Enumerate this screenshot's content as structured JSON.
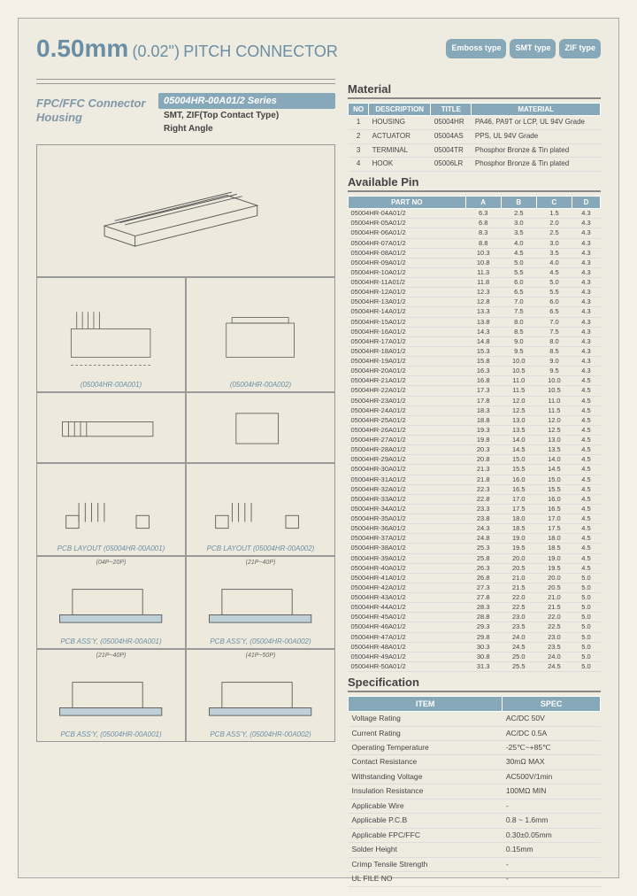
{
  "header": {
    "size": "0.50mm",
    "size_inch": "(0.02\")",
    "title_rest": "PITCH CONNECTOR",
    "badges": [
      "Emboss type",
      "SMT type",
      "ZIF type"
    ]
  },
  "series": {
    "left_title": "FPC/FFC Connector Housing",
    "box": "05004HR-00A01/2  Series",
    "line1": "SMT, ZIF(Top Contact Type)",
    "line2": "Right Angle"
  },
  "diagrams": {
    "main": "(05004HR-00A001)",
    "d2a": "(05004HR-00A001)",
    "d2b": "(05004HR-00A002)",
    "pcb1": "PCB LAYOUT (05004HR-00A001)",
    "pcb2": "PCB LAYOUT (05004HR-00A002)",
    "assy1": "PCB ASS'Y, (05004HR-00A001)",
    "assy2": "PCB ASS'Y, (05004HR-00A002)",
    "assy3": "PCB ASS'Y, (05004HR-00A001)",
    "assy4": "PCB ASS'Y, (05004HR-00A002)",
    "assy1_note": "(04P~20P)",
    "assy2_note": "(21P~40P)",
    "assy3_note": "(21P~40P)",
    "assy4_note": "(41P~50P)"
  },
  "material": {
    "heading": "Material",
    "cols": [
      "NO",
      "DESCRIPTION",
      "TITLE",
      "MATERIAL"
    ],
    "rows": [
      [
        "1",
        "HOUSING",
        "05004HR",
        "PA46, PA9T or LCP, UL 94V Grade"
      ],
      [
        "2",
        "ACTUATOR",
        "05004AS",
        "PPS, UL 94V Grade"
      ],
      [
        "3",
        "TERMINAL",
        "05004TR",
        "Phosphor Bronze & Tin plated"
      ],
      [
        "4",
        "HOOK",
        "05006LR",
        "Phosphor Bronze & Tin plated"
      ]
    ]
  },
  "pins": {
    "heading": "Available Pin",
    "cols": [
      "PART NO",
      "A",
      "B",
      "C",
      "D"
    ],
    "rows": [
      [
        "05004HR-04A01/2",
        "6.3",
        "2.5",
        "1.5",
        "4.3"
      ],
      [
        "05004HR-05A01/2",
        "6.8",
        "3.0",
        "2.0",
        "4.3"
      ],
      [
        "05004HR-06A01/2",
        "8.3",
        "3.5",
        "2.5",
        "4.3"
      ],
      [
        "05004HR-07A01/2",
        "8.8",
        "4.0",
        "3.0",
        "4.3"
      ],
      [
        "05004HR-08A01/2",
        "10.3",
        "4.5",
        "3.5",
        "4.3"
      ],
      [
        "05004HR-09A01/2",
        "10.8",
        "5.0",
        "4.0",
        "4.3"
      ],
      [
        "05004HR-10A01/2",
        "11.3",
        "5.5",
        "4.5",
        "4.3"
      ],
      [
        "05004HR-11A01/2",
        "11.8",
        "6.0",
        "5.0",
        "4.3"
      ],
      [
        "05004HR-12A01/2",
        "12.3",
        "6.5",
        "5.5",
        "4.3"
      ],
      [
        "05004HR-13A01/2",
        "12.8",
        "7.0",
        "6.0",
        "4.3"
      ],
      [
        "05004HR-14A01/2",
        "13.3",
        "7.5",
        "6.5",
        "4.3"
      ],
      [
        "05004HR-15A01/2",
        "13.8",
        "8.0",
        "7.0",
        "4.3"
      ],
      [
        "05004HR-16A01/2",
        "14.3",
        "8.5",
        "7.5",
        "4.3"
      ],
      [
        "05004HR-17A01/2",
        "14.8",
        "9.0",
        "8.0",
        "4.3"
      ],
      [
        "05004HR-18A01/2",
        "15.3",
        "9.5",
        "8.5",
        "4.3"
      ],
      [
        "05004HR-19A01/2",
        "15.8",
        "10.0",
        "9.0",
        "4.3"
      ],
      [
        "05004HR-20A01/2",
        "16.3",
        "10.5",
        "9.5",
        "4.3"
      ],
      [
        "05004HR-21A01/2",
        "16.8",
        "11.0",
        "10.0",
        "4.5"
      ],
      [
        "05004HR-22A01/2",
        "17.3",
        "11.5",
        "10.5",
        "4.5"
      ],
      [
        "05004HR-23A01/2",
        "17.8",
        "12.0",
        "11.0",
        "4.5"
      ],
      [
        "05004HR-24A01/2",
        "18.3",
        "12.5",
        "11.5",
        "4.5"
      ],
      [
        "05004HR-25A01/2",
        "18.8",
        "13.0",
        "12.0",
        "4.5"
      ],
      [
        "05004HR-26A01/2",
        "19.3",
        "13.5",
        "12.5",
        "4.5"
      ],
      [
        "05004HR-27A01/2",
        "19.8",
        "14.0",
        "13.0",
        "4.5"
      ],
      [
        "05004HR-28A01/2",
        "20.3",
        "14.5",
        "13.5",
        "4.5"
      ],
      [
        "05004HR-29A01/2",
        "20.8",
        "15.0",
        "14.0",
        "4.5"
      ],
      [
        "05004HR-30A01/2",
        "21.3",
        "15.5",
        "14.5",
        "4.5"
      ],
      [
        "05004HR-31A01/2",
        "21.8",
        "16.0",
        "15.0",
        "4.5"
      ],
      [
        "05004HR-32A01/2",
        "22.3",
        "16.5",
        "15.5",
        "4.5"
      ],
      [
        "05004HR-33A01/2",
        "22.8",
        "17.0",
        "16.0",
        "4.5"
      ],
      [
        "05004HR-34A01/2",
        "23.3",
        "17.5",
        "16.5",
        "4.5"
      ],
      [
        "05004HR-35A01/2",
        "23.8",
        "18.0",
        "17.0",
        "4.5"
      ],
      [
        "05004HR-36A01/2",
        "24.3",
        "18.5",
        "17.5",
        "4.5"
      ],
      [
        "05004HR-37A01/2",
        "24.8",
        "19.0",
        "18.0",
        "4.5"
      ],
      [
        "05004HR-38A01/2",
        "25.3",
        "19.5",
        "18.5",
        "4.5"
      ],
      [
        "05004HR-39A01/2",
        "25.8",
        "20.0",
        "19.0",
        "4.5"
      ],
      [
        "05004HR-40A01/2",
        "26.3",
        "20.5",
        "19.5",
        "4.5"
      ],
      [
        "05004HR-41A01/2",
        "26.8",
        "21.0",
        "20.0",
        "5.0"
      ],
      [
        "05004HR-42A01/2",
        "27.3",
        "21.5",
        "20.5",
        "5.0"
      ],
      [
        "05004HR-43A01/2",
        "27.8",
        "22.0",
        "21.0",
        "5.0"
      ],
      [
        "05004HR-44A01/2",
        "28.3",
        "22.5",
        "21.5",
        "5.0"
      ],
      [
        "05004HR-45A01/2",
        "28.8",
        "23.0",
        "22.0",
        "5.0"
      ],
      [
        "05004HR-46A01/2",
        "29.3",
        "23.5",
        "22.5",
        "5.0"
      ],
      [
        "05004HR-47A01/2",
        "29.8",
        "24.0",
        "23.0",
        "5.0"
      ],
      [
        "05004HR-48A01/2",
        "30.3",
        "24.5",
        "23.5",
        "5.0"
      ],
      [
        "05004HR-49A01/2",
        "30.8",
        "25.0",
        "24.0",
        "5.0"
      ],
      [
        "05004HR-50A01/2",
        "31.3",
        "25.5",
        "24.5",
        "5.0"
      ]
    ]
  },
  "spec": {
    "heading": "Specification",
    "cols": [
      "ITEM",
      "SPEC"
    ],
    "rows": [
      [
        "Voltage Rating",
        "AC/DC 50V"
      ],
      [
        "Current Rating",
        "AC/DC 0.5A"
      ],
      [
        "Operating Temperature",
        "-25℃~+85℃"
      ],
      [
        "Contact Resistance",
        "30mΩ MAX"
      ],
      [
        "Withstanding Voltage",
        "AC500V/1min"
      ],
      [
        "Insulation Resistance",
        "100MΩ MIN"
      ],
      [
        "Applicable Wire",
        "-"
      ],
      [
        "Applicable P.C.B",
        "0.8 ~ 1.6mm"
      ],
      [
        "Applicable FPC/FFC",
        "0.30±0.05mm"
      ],
      [
        "Solder Height",
        "0.15mm"
      ],
      [
        "Crimp Tensile Strength",
        "-"
      ],
      [
        "UL FILE NO",
        "-"
      ]
    ]
  }
}
